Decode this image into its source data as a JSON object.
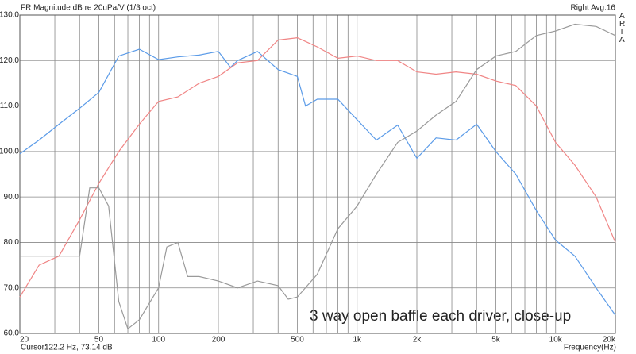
{
  "chart_data": {
    "type": "line",
    "title": "FR Magnitude dB re 20uPa/V (1/3 oct)",
    "top_right": "Right  Avg:16",
    "brand": "ARTA",
    "annotation": "3 way open baffle each driver, close-up",
    "cursor_label": "Cursor:",
    "cursor_value": "122.2 Hz, 73.14 dB",
    "xlabel": "Frequency(Hz)",
    "xscale": "log",
    "grid": true,
    "xlim": [
      20,
      20000
    ],
    "ylim": [
      60,
      130
    ],
    "xticks": [
      20,
      50,
      100,
      200,
      500,
      {
        "value": 1000,
        "label": "1k"
      },
      {
        "value": 2000,
        "label": "2k"
      },
      {
        "value": 5000,
        "label": "5k"
      },
      {
        "value": 10000,
        "label": "10k"
      },
      {
        "value": 20000,
        "label": "20k"
      }
    ],
    "xgrid_minor": [
      30,
      40,
      60,
      70,
      80,
      90,
      300,
      400,
      600,
      700,
      800,
      900,
      3000,
      4000,
      6000,
      7000,
      8000,
      9000
    ],
    "yticks": [
      {
        "value": 60,
        "label": "60.0"
      },
      {
        "value": 70,
        "label": "70.0"
      },
      {
        "value": 80,
        "label": "80.0"
      },
      {
        "value": 90,
        "label": "90.0"
      },
      {
        "value": 100,
        "label": "100.0"
      },
      {
        "value": 110,
        "label": "110.0"
      },
      {
        "value": 120,
        "label": "120.0"
      },
      {
        "value": 130,
        "label": "130.0"
      }
    ],
    "series": [
      {
        "color": "#5b9be8",
        "x": [
          20,
          25,
          31.5,
          40,
          50,
          63,
          80,
          100,
          125,
          160,
          200,
          230,
          250,
          315,
          400,
          500,
          550,
          630,
          800,
          1000,
          1250,
          1600,
          2000,
          2500,
          3150,
          4000,
          5000,
          6300,
          8000,
          10000,
          12500,
          16000,
          20000
        ],
        "values": [
          99.5,
          102.5,
          106,
          109.5,
          113,
          121,
          122.5,
          120.2,
          120.8,
          121.2,
          122,
          118.5,
          120,
          122,
          118,
          116.5,
          110,
          111.5,
          111.5,
          107,
          102.5,
          105.8,
          98.5,
          103,
          102.5,
          106,
          100,
          95,
          87,
          80.5,
          77,
          70,
          64
        ]
      },
      {
        "color": "#f08585",
        "x": [
          20,
          25,
          31.5,
          40,
          50,
          63,
          80,
          100,
          125,
          160,
          200,
          250,
          315,
          400,
          500,
          630,
          800,
          1000,
          1250,
          1600,
          2000,
          2500,
          3150,
          4000,
          5000,
          6300,
          8000,
          10000,
          12500,
          16000,
          20000
        ],
        "values": [
          68,
          75,
          77,
          85,
          93,
          100,
          106,
          111,
          112,
          115,
          116.5,
          119.5,
          120,
          124.5,
          125,
          123,
          120.5,
          121,
          120,
          120,
          117.5,
          117,
          117.5,
          117,
          115.5,
          114.5,
          110,
          102,
          97,
          90,
          80
        ]
      },
      {
        "color": "#9a9a9a",
        "x": [
          20,
          25,
          31.5,
          40,
          45,
          50,
          56,
          63,
          70,
          80,
          100,
          110,
          125,
          140,
          160,
          200,
          250,
          315,
          400,
          450,
          500,
          630,
          800,
          1000,
          1250,
          1600,
          2000,
          2500,
          3150,
          4000,
          5000,
          6300,
          8000,
          10000,
          12500,
          16000,
          20000
        ],
        "values": [
          77,
          77,
          77,
          77,
          92,
          92,
          88,
          67,
          61,
          63,
          70,
          79,
          80,
          72.5,
          72.5,
          71.5,
          70,
          71.5,
          70.5,
          67.5,
          68,
          73,
          83,
          88,
          95,
          102,
          104.5,
          108,
          111,
          118,
          121,
          122,
          125.5,
          126.5,
          128,
          127.5,
          125.5
        ]
      }
    ]
  }
}
